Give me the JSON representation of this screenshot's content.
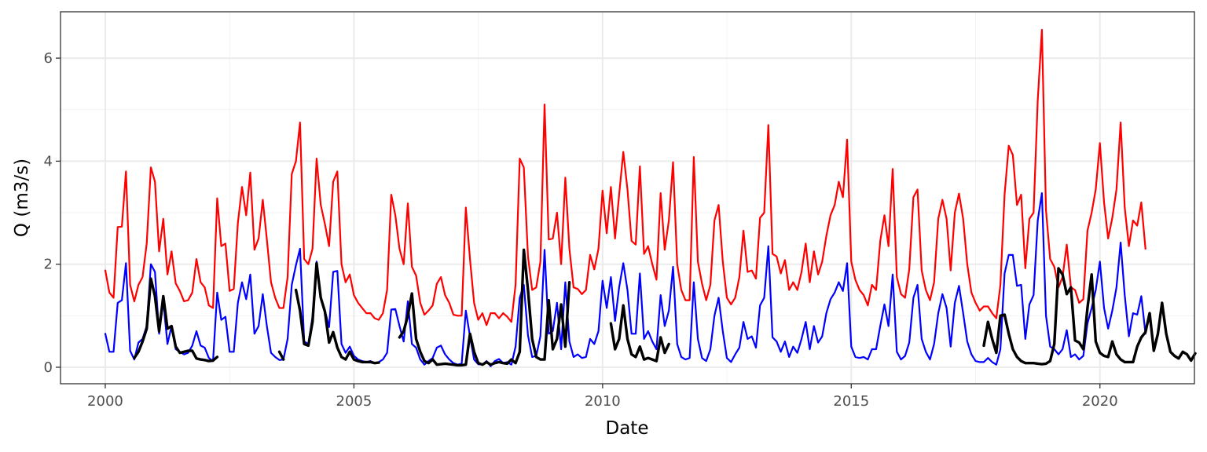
{
  "chart_data": {
    "type": "line",
    "title": "",
    "xlabel": "Date",
    "ylabel": "Q (m3/s)",
    "xlim": [
      1999.1,
      2021.9
    ],
    "ylim": [
      -0.32,
      6.9
    ],
    "x_ticks": [
      2000,
      2005,
      2010,
      2015,
      2020
    ],
    "x_tick_labels": [
      "2000",
      "2005",
      "2010",
      "2015",
      "2020"
    ],
    "y_ticks": [
      0,
      2,
      4,
      6
    ],
    "y_tick_labels": [
      "0",
      "2",
      "4",
      "6"
    ],
    "grid": true,
    "legend": "none",
    "x_start": 2000.0,
    "x_step": 0.08333,
    "series": [
      {
        "color": "#ff0000",
        "stroke": 2.2,
        "values": [
          1.88,
          1.45,
          1.35,
          2.72,
          2.73,
          3.8,
          1.6,
          1.28,
          1.6,
          1.75,
          2.4,
          3.88,
          3.6,
          2.25,
          2.88,
          1.8,
          2.25,
          1.63,
          1.48,
          1.28,
          1.3,
          1.45,
          2.1,
          1.65,
          1.55,
          1.2,
          1.15,
          3.28,
          2.35,
          2.4,
          1.48,
          1.52,
          2.8,
          3.5,
          2.95,
          3.78,
          2.28,
          2.5,
          3.25,
          2.48,
          1.65,
          1.35,
          1.15,
          1.15,
          1.75,
          3.75,
          4.0,
          4.75,
          2.1,
          2.0,
          2.3,
          4.05,
          3.15,
          2.78,
          2.35,
          3.6,
          3.8,
          2.0,
          1.65,
          1.8,
          1.4,
          1.25,
          1.15,
          1.05,
          1.05,
          0.95,
          0.92,
          1.05,
          1.5,
          3.35,
          2.95,
          2.3,
          2.0,
          3.18,
          1.95,
          1.78,
          1.25,
          1.02,
          1.1,
          1.2,
          1.62,
          1.75,
          1.4,
          1.25,
          1.02,
          1.0,
          1.0,
          3.1,
          2.1,
          1.25,
          0.92,
          1.05,
          0.82,
          1.05,
          1.05,
          0.95,
          1.05,
          0.98,
          0.88,
          1.6,
          4.05,
          3.88,
          2.15,
          1.5,
          1.55,
          2.05,
          5.1,
          2.48,
          2.5,
          3.0,
          2.0,
          3.68,
          2.3,
          1.55,
          1.52,
          1.42,
          1.5,
          2.18,
          1.9,
          2.3,
          3.43,
          2.6,
          3.5,
          2.5,
          3.35,
          4.18,
          3.45,
          2.45,
          2.38,
          3.9,
          2.2,
          2.35,
          2.0,
          1.7,
          3.38,
          2.28,
          2.85,
          3.98,
          2.0,
          1.5,
          1.3,
          1.3,
          4.08,
          2.05,
          1.62,
          1.3,
          1.6,
          2.85,
          3.15,
          2.05,
          1.35,
          1.22,
          1.35,
          1.75,
          2.65,
          1.85,
          1.88,
          1.72,
          2.9,
          3.0,
          4.7,
          2.2,
          2.15,
          1.82,
          2.08,
          1.5,
          1.65,
          1.5,
          1.85,
          2.4,
          1.65,
          2.25,
          1.8,
          2.05,
          2.55,
          2.95,
          3.15,
          3.6,
          3.3,
          4.42,
          2.05,
          1.7,
          1.5,
          1.4,
          1.2,
          1.6,
          1.5,
          2.45,
          2.95,
          2.35,
          3.85,
          1.75,
          1.42,
          1.35,
          1.9,
          3.3,
          3.45,
          1.88,
          1.5,
          1.3,
          1.65,
          2.88,
          3.25,
          2.88,
          1.88,
          3.0,
          3.37,
          2.88,
          2.0,
          1.45,
          1.25,
          1.1,
          1.18,
          1.18,
          1.05,
          0.95,
          1.6,
          3.35,
          4.3,
          4.12,
          3.15,
          3.35,
          1.92,
          2.88,
          3.0,
          5.18,
          6.55,
          3.05,
          2.1,
          1.95,
          1.55,
          1.75,
          2.38,
          1.55,
          1.5,
          1.25,
          1.32,
          2.65,
          3.0,
          3.45,
          4.35,
          3.2,
          2.5,
          2.9,
          3.45,
          4.75,
          3.1,
          2.35,
          2.85,
          2.75,
          3.2,
          2.3
        ]
      },
      {
        "color": "#0000ff",
        "stroke": 2.2,
        "values": [
          0.65,
          0.3,
          0.3,
          1.25,
          1.3,
          2.02,
          0.32,
          0.15,
          0.48,
          0.55,
          0.8,
          2.0,
          1.85,
          0.65,
          1.28,
          0.45,
          0.8,
          0.35,
          0.3,
          0.25,
          0.28,
          0.42,
          0.7,
          0.42,
          0.38,
          0.18,
          0.12,
          1.45,
          0.92,
          0.98,
          0.3,
          0.3,
          1.25,
          1.65,
          1.32,
          1.8,
          0.65,
          0.8,
          1.42,
          0.8,
          0.28,
          0.2,
          0.14,
          0.15,
          0.55,
          1.6,
          1.98,
          2.3,
          0.5,
          0.45,
          0.98,
          2.05,
          1.35,
          1.1,
          0.78,
          1.85,
          1.87,
          0.45,
          0.28,
          0.4,
          0.22,
          0.15,
          0.12,
          0.1,
          0.12,
          0.08,
          0.1,
          0.15,
          0.28,
          1.12,
          1.13,
          0.8,
          0.5,
          1.28,
          0.45,
          0.38,
          0.15,
          0.05,
          0.12,
          0.18,
          0.38,
          0.42,
          0.25,
          0.15,
          0.08,
          0.05,
          0.07,
          1.1,
          0.6,
          0.15,
          0.06,
          0.05,
          0.12,
          0.02,
          0.12,
          0.16,
          0.08,
          0.1,
          0.05,
          0.4,
          1.35,
          1.6,
          0.62,
          0.2,
          0.22,
          0.6,
          2.28,
          0.65,
          0.7,
          1.25,
          0.35,
          1.65,
          0.5,
          0.2,
          0.25,
          0.18,
          0.2,
          0.55,
          0.45,
          0.7,
          1.68,
          1.15,
          1.75,
          0.9,
          1.55,
          2.02,
          1.5,
          0.65,
          0.65,
          1.82,
          0.55,
          0.7,
          0.5,
          0.35,
          1.4,
          0.8,
          1.1,
          1.95,
          0.45,
          0.2,
          0.15,
          0.18,
          1.65,
          0.55,
          0.18,
          0.12,
          0.35,
          1.0,
          1.35,
          0.7,
          0.18,
          0.1,
          0.25,
          0.38,
          0.88,
          0.55,
          0.6,
          0.38,
          1.2,
          1.35,
          2.35,
          0.58,
          0.5,
          0.3,
          0.5,
          0.2,
          0.4,
          0.28,
          0.55,
          0.88,
          0.35,
          0.8,
          0.48,
          0.6,
          1.05,
          1.32,
          1.45,
          1.65,
          1.48,
          2.02,
          0.4,
          0.2,
          0.18,
          0.2,
          0.15,
          0.35,
          0.35,
          0.8,
          1.22,
          0.8,
          1.8,
          0.3,
          0.15,
          0.22,
          0.48,
          1.35,
          1.6,
          0.55,
          0.3,
          0.15,
          0.45,
          1.05,
          1.42,
          1.15,
          0.4,
          1.25,
          1.58,
          1.05,
          0.5,
          0.25,
          0.12,
          0.1,
          0.1,
          0.18,
          0.1,
          0.05,
          0.35,
          1.82,
          2.18,
          2.18,
          1.58,
          1.6,
          0.55,
          1.22,
          1.4,
          2.85,
          3.38,
          1.0,
          0.4,
          0.35,
          0.25,
          0.35,
          0.72,
          0.2,
          0.25,
          0.15,
          0.22,
          0.85,
          1.15,
          1.5,
          2.05,
          1.15,
          0.75,
          1.1,
          1.55,
          2.42,
          1.4,
          0.6,
          1.05,
          1.02,
          1.38,
          0.65
        ]
      },
      {
        "color": "#000000",
        "stroke": 3.4,
        "values": [
          null,
          null,
          null,
          null,
          null,
          null,
          null,
          0.18,
          0.3,
          0.5,
          0.75,
          1.72,
          1.38,
          0.7,
          1.38,
          0.75,
          0.8,
          0.4,
          0.28,
          0.3,
          0.32,
          0.32,
          0.17,
          0.15,
          0.14,
          0.12,
          0.13,
          0.2,
          null,
          null,
          null,
          null,
          null,
          null,
          null,
          null,
          null,
          null,
          null,
          null,
          null,
          null,
          0.3,
          0.15,
          null,
          null,
          1.5,
          1.1,
          0.45,
          0.42,
          0.88,
          2.02,
          1.35,
          1.08,
          0.48,
          0.68,
          0.38,
          0.2,
          0.15,
          0.3,
          0.15,
          0.12,
          0.1,
          0.1,
          0.1,
          0.08,
          0.09,
          null,
          null,
          null,
          null,
          0.58,
          0.7,
          1.0,
          1.43,
          0.55,
          0.3,
          0.12,
          0.08,
          0.15,
          0.05,
          0.06,
          0.07,
          0.06,
          0.05,
          0.04,
          0.04,
          0.05,
          0.65,
          0.3,
          0.08,
          0.05,
          0.1,
          0.05,
          0.08,
          0.1,
          0.08,
          0.07,
          0.15,
          0.08,
          0.3,
          2.28,
          1.5,
          0.55,
          0.2,
          0.15,
          0.15,
          1.3,
          0.35,
          0.55,
          1.22,
          0.4,
          1.65,
          null,
          null,
          null,
          null,
          null,
          null,
          null,
          null,
          null,
          0.85,
          0.35,
          0.55,
          1.2,
          0.55,
          0.25,
          0.2,
          0.4,
          0.15,
          0.18,
          0.15,
          0.12,
          0.58,
          0.28,
          0.45,
          null,
          null,
          null,
          null,
          null,
          null,
          null,
          null,
          null,
          null,
          null,
          null,
          null,
          null,
          null,
          null,
          null,
          null,
          null,
          null,
          null,
          null,
          null,
          null,
          null,
          null,
          null,
          null,
          null,
          null,
          null,
          null,
          null,
          null,
          null,
          null,
          null,
          null,
          null,
          null,
          null,
          null,
          null,
          null,
          null,
          null,
          null,
          null,
          null,
          null,
          null,
          null,
          null,
          null,
          null,
          null,
          null,
          null,
          null,
          null,
          null,
          null,
          null,
          null,
          null,
          null,
          null,
          null,
          null,
          null,
          null,
          null,
          null,
          null,
          null,
          0.42,
          0.88,
          0.55,
          0.28,
          1.0,
          1.02,
          0.65,
          0.35,
          0.2,
          0.12,
          0.08,
          0.08,
          0.08,
          0.07,
          0.06,
          0.07,
          0.12,
          0.45,
          1.92,
          1.8,
          1.42,
          1.55,
          0.52,
          0.48,
          0.35,
          1.15,
          1.8,
          0.5,
          0.28,
          0.22,
          0.2,
          0.5,
          0.25,
          0.15,
          0.1,
          0.1,
          0.1,
          0.4,
          0.58,
          0.68,
          1.05,
          0.32,
          0.65,
          1.25,
          0.65,
          0.3,
          0.22,
          0.17,
          0.3,
          0.25,
          0.13,
          0.27
        ]
      }
    ]
  }
}
